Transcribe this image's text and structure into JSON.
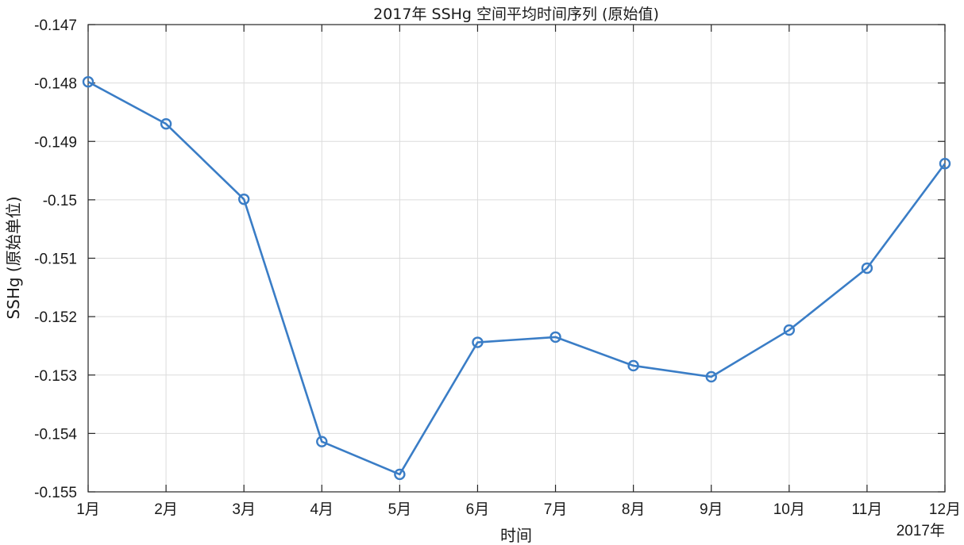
{
  "chart_data": {
    "type": "line",
    "title": "2017年 SSHg 空间平均时间序列 (原始值)",
    "xlabel": "时间",
    "ylabel": "SSHg (原始单位)",
    "x_secondary_label": "2017年",
    "categories": [
      "1月",
      "2月",
      "3月",
      "4月",
      "5月",
      "6月",
      "7月",
      "8月",
      "9月",
      "10月",
      "11月",
      "12月"
    ],
    "y_tick_labels": [
      "-0.147",
      "-0.148",
      "-0.149",
      "-0.15",
      "-0.151",
      "-0.152",
      "-0.153",
      "-0.154",
      "-0.155"
    ],
    "y_ticks": [
      -0.147,
      -0.148,
      -0.149,
      -0.15,
      -0.151,
      -0.152,
      -0.153,
      -0.154,
      -0.155
    ],
    "ylim": [
      -0.155,
      -0.147
    ],
    "grid": true,
    "series": [
      {
        "values": [
          -0.14798,
          -0.1487,
          -0.14999,
          -0.15414,
          -0.1547,
          -0.15244,
          -0.15235,
          -0.15284,
          -0.15303,
          -0.15223,
          -0.15117,
          -0.14938
        ],
        "color": "#3a7dc6",
        "marker": "circle"
      }
    ]
  }
}
